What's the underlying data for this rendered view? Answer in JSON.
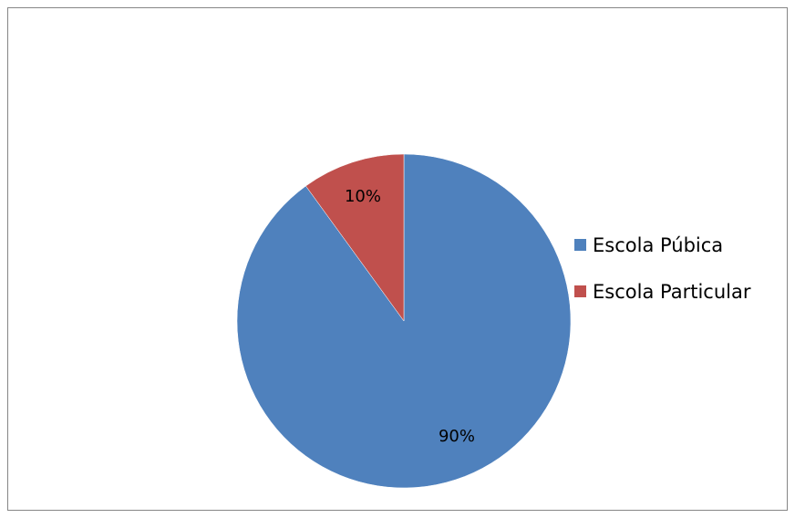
{
  "chart_data": {
    "type": "pie",
    "title": "",
    "categories": [
      "Escola Púbica",
      "Escola Particular"
    ],
    "values": [
      90,
      10
    ],
    "data_labels": [
      "90%",
      "10%"
    ],
    "colors": [
      "#4f81bd",
      "#c0504d"
    ],
    "legend_position": "right",
    "start_angle": "12 o'clock",
    "direction": "clockwise"
  }
}
